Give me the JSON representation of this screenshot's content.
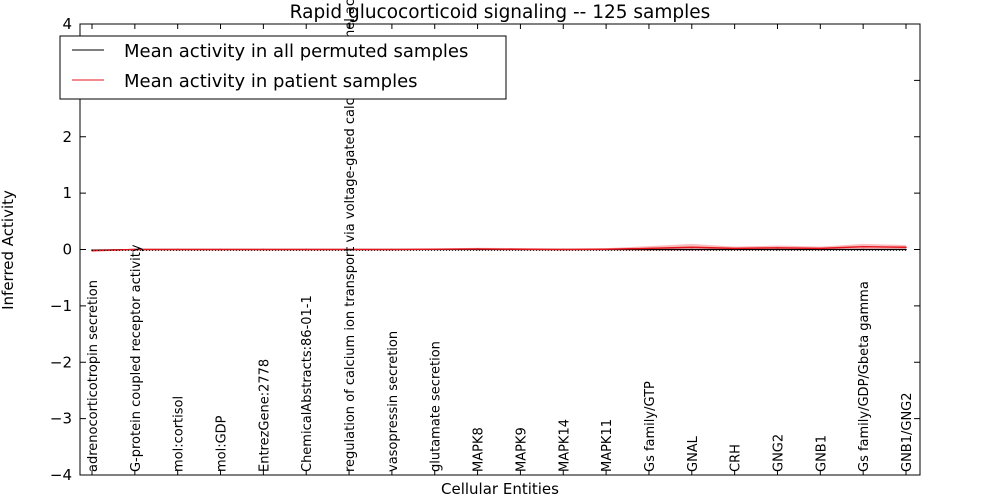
{
  "chart_data": {
    "type": "line",
    "title": "Rapid glucocorticoid signaling -- 125 samples",
    "xlabel": "Cellular Entities",
    "ylabel": "Inferred Activity",
    "ylim": [
      -4,
      4
    ],
    "yticks": [
      -4,
      -3,
      -2,
      -1,
      0,
      1,
      2,
      3,
      4
    ],
    "ytick_labels": [
      "−4",
      "−3",
      "−2",
      "−1",
      "0",
      "1",
      "2",
      "3",
      "4"
    ],
    "categories": [
      "adrenocorticotropin secretion",
      "G-protein coupled receptor activity",
      "mol:cortisol",
      "mol:GDP",
      "EntrezGene:2778",
      "ChemicalAbstracts:86-01-1",
      "regulation of calcium ion transport via voltage-gated calcium channel activity",
      "vasopressin secretion",
      "glutamate secretion",
      "MAPK8",
      "MAPK9",
      "MAPK14",
      "MAPK11",
      "Gs family/GTP",
      "GNAL",
      "CRH",
      "GNG2",
      "GNB1",
      "Gs family/GDP/Gbeta gamma",
      "GNB1/GNG2"
    ],
    "legend_position": "upper-left",
    "series": [
      {
        "name": "Mean activity in all permuted samples",
        "color": "#000000",
        "values": [
          -0.01,
          0.0,
          0.0,
          0.0,
          0.0,
          0.0,
          0.0,
          0.0,
          0.0,
          0.0,
          0.0,
          0.0,
          0.0,
          0.0,
          0.0,
          0.0,
          0.0,
          0.0,
          0.0,
          0.0
        ],
        "band": [
          0.0,
          0.0,
          0.0,
          0.0,
          0.0,
          0.0,
          0.0,
          0.0,
          0.0,
          0.0,
          0.0,
          0.0,
          0.0,
          0.0,
          0.0,
          0.0,
          0.0,
          0.0,
          0.0,
          0.0
        ]
      },
      {
        "name": "Mean activity in patient samples",
        "color": "#e8141c",
        "values": [
          -0.02,
          0.0,
          0.0,
          0.0,
          0.0,
          0.0,
          0.0,
          0.0,
          0.005,
          0.01,
          0.005,
          0.0,
          0.005,
          0.02,
          0.04,
          0.02,
          0.03,
          0.02,
          0.05,
          0.04
        ],
        "band": [
          0.02,
          0.01,
          0.005,
          0.005,
          0.005,
          0.005,
          0.005,
          0.005,
          0.01,
          0.02,
          0.02,
          0.015,
          0.02,
          0.04,
          0.06,
          0.03,
          0.04,
          0.03,
          0.05,
          0.04
        ]
      }
    ]
  }
}
